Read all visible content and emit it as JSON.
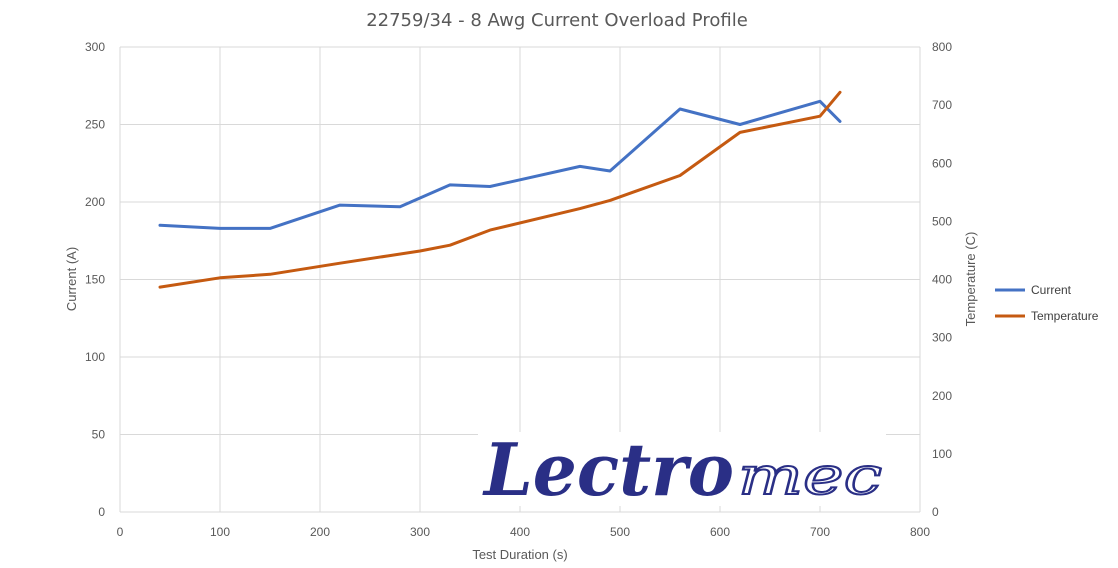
{
  "chart_data": {
    "type": "line",
    "title": "22759/34 - 8 Awg Current Overload Profile",
    "xlabel": "Test Duration (s)",
    "ylabel": "Current (A)",
    "y2label": "Temperature (C)",
    "xlim": [
      0,
      800
    ],
    "ylim": [
      0,
      300
    ],
    "y2lim": [
      0,
      800
    ],
    "x_ticks": [
      0,
      100,
      200,
      300,
      400,
      500,
      600,
      700,
      800
    ],
    "y_ticks": [
      0,
      50,
      100,
      150,
      200,
      250,
      300
    ],
    "y2_ticks": [
      0,
      100,
      200,
      300,
      400,
      500,
      600,
      700,
      800
    ],
    "grid": true,
    "legend_position": "right",
    "series": [
      {
        "name": "Current",
        "axis": "left",
        "color": "#4472c4",
        "points": [
          [
            40,
            185
          ],
          [
            100,
            183
          ],
          [
            150,
            183
          ],
          [
            220,
            198
          ],
          [
            280,
            197
          ],
          [
            330,
            211
          ],
          [
            370,
            210
          ],
          [
            460,
            223
          ],
          [
            490,
            220
          ],
          [
            560,
            260
          ],
          [
            620,
            250
          ],
          [
            700,
            265
          ],
          [
            720,
            252
          ]
        ]
      },
      {
        "name": "Temperature",
        "axis": "right",
        "color": "#c55a11",
        "points": [
          [
            40,
            387
          ],
          [
            100,
            403
          ],
          [
            150,
            409
          ],
          [
            220,
            428
          ],
          [
            300,
            449
          ],
          [
            330,
            459
          ],
          [
            370,
            485
          ],
          [
            460,
            522
          ],
          [
            490,
            536
          ],
          [
            560,
            579
          ],
          [
            620,
            653
          ],
          [
            700,
            681
          ],
          [
            720,
            722
          ]
        ]
      }
    ]
  },
  "logo": {
    "bold": "Lectro",
    "light": "mec"
  }
}
